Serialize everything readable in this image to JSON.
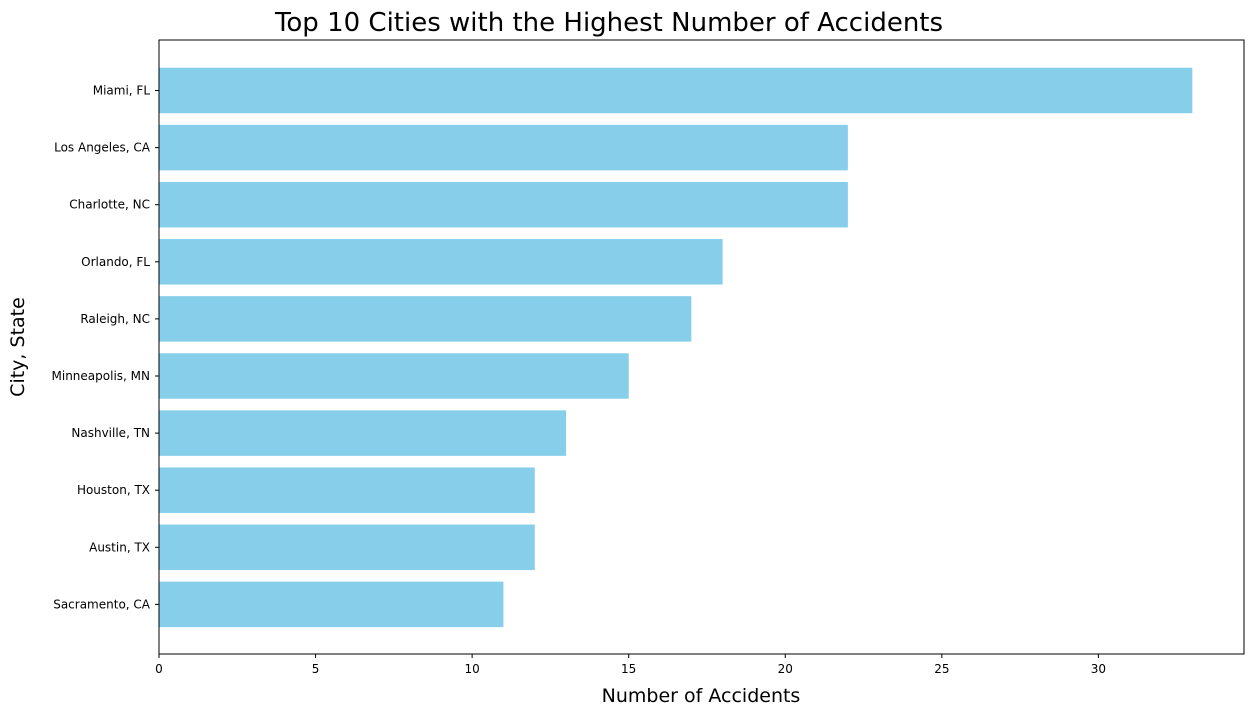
{
  "chart_data": {
    "type": "bar",
    "orientation": "horizontal",
    "title": "Top 10 Cities with the Highest Number of Accidents",
    "xlabel": "Number of Accidents",
    "ylabel": "City, State",
    "categories": [
      "Miami, FL",
      "Los Angeles, CA",
      "Charlotte, NC",
      "Orlando, FL",
      "Raleigh, NC",
      "Minneapolis, MN",
      "Nashville, TN",
      "Houston, TX",
      "Austin, TX",
      "Sacramento, CA"
    ],
    "values": [
      33,
      22,
      22,
      18,
      17,
      15,
      13,
      12,
      12,
      11
    ],
    "xlim": [
      0,
      34.65
    ],
    "xticks": [
      0,
      5,
      10,
      15,
      20,
      25,
      30
    ],
    "bar_color": "#87CEEB",
    "grid": false,
    "legend": "none"
  }
}
